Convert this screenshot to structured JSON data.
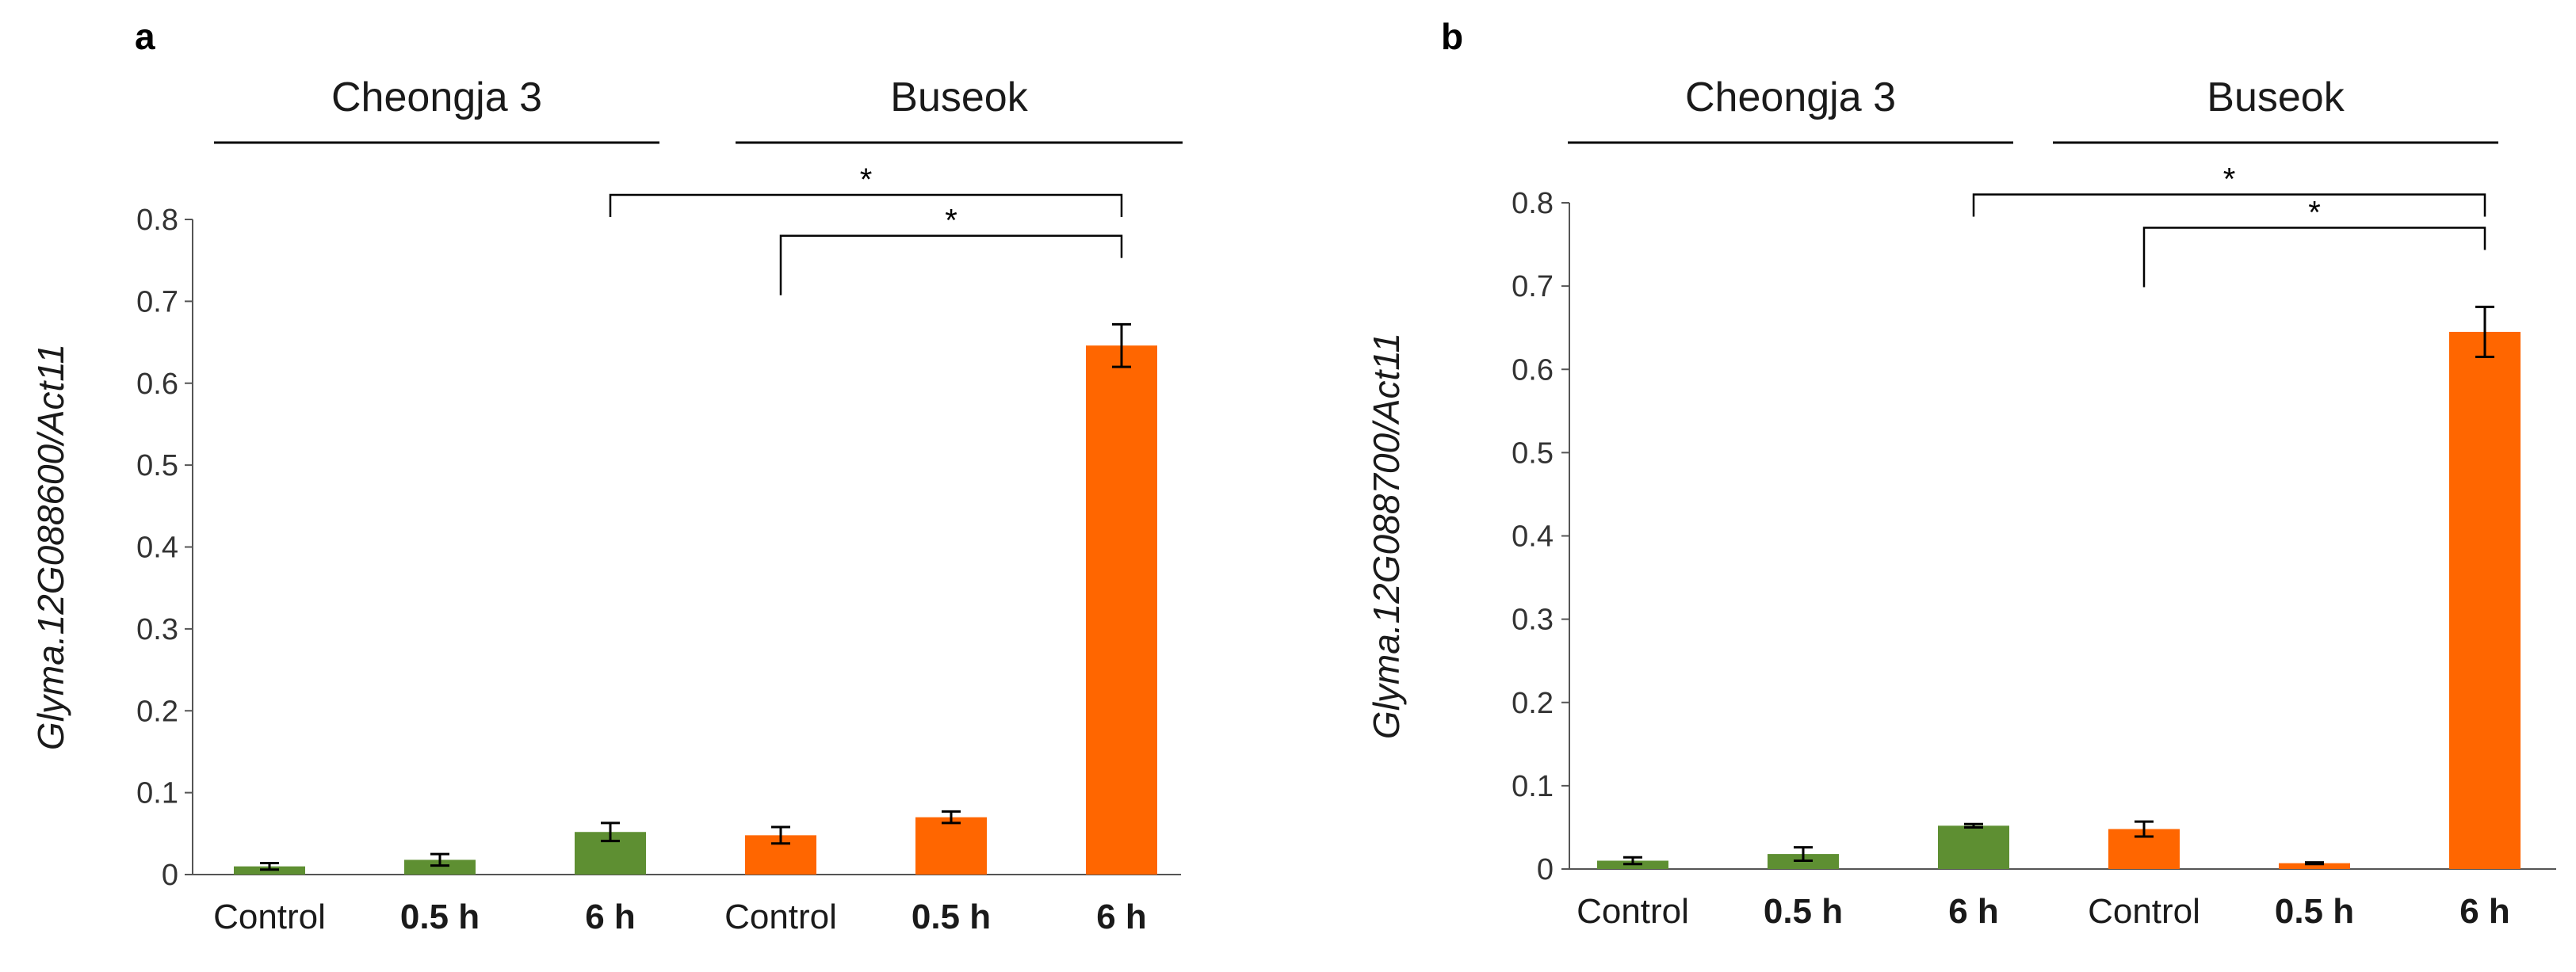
{
  "figure": {
    "group_labels": [
      "Cheongja 3",
      "Buseok"
    ]
  },
  "chart_data": [
    {
      "type": "bar",
      "panel": "a",
      "ylabel_gene": "Glyma.12G088600",
      "ylabel_ref": "/Act11",
      "categories": [
        "Control",
        "0.5 h",
        "6 h",
        "Control",
        "0.5 h",
        "6 h"
      ],
      "category_bold": [
        false,
        true,
        true,
        false,
        true,
        true
      ],
      "groups": [
        {
          "name": "Cheongja 3",
          "indices": [
            0,
            1,
            2
          ],
          "color": "#5e8f32"
        },
        {
          "name": "Buseok",
          "indices": [
            3,
            4,
            5
          ],
          "color": "#ff6600"
        }
      ],
      "values": [
        0.01,
        0.018,
        0.052,
        0.048,
        0.07,
        0.646
      ],
      "errors": [
        0.004,
        0.007,
        0.011,
        0.01,
        0.007,
        0.026
      ],
      "ylim": [
        0,
        0.8
      ],
      "yticks": [
        0,
        0.1,
        0.2,
        0.3,
        0.4,
        0.5,
        0.6,
        0.7,
        0.8
      ],
      "ytick_labels": [
        "0",
        "0.1",
        "0.2",
        "0.3",
        "0.4",
        "0.5",
        "0.6",
        "0.7",
        "0.8"
      ],
      "significance": [
        {
          "from": 2,
          "to": 5,
          "y": 0.83,
          "label": "*"
        },
        {
          "from": 3,
          "to": 5,
          "y": 0.78,
          "label": "*"
        }
      ]
    },
    {
      "type": "bar",
      "panel": "b",
      "ylabel_gene": "Glyma.12G088700",
      "ylabel_ref": "/Act11",
      "categories": [
        "Control",
        "0.5 h",
        "6 h",
        "Control",
        "0.5 h",
        "6 h"
      ],
      "category_bold": [
        false,
        true,
        true,
        false,
        true,
        true
      ],
      "groups": [
        {
          "name": "Cheongja 3",
          "indices": [
            0,
            1,
            2
          ],
          "color": "#5e8f32"
        },
        {
          "name": "Buseok",
          "indices": [
            3,
            4,
            5
          ],
          "color": "#ff6600"
        }
      ],
      "values": [
        0.01,
        0.018,
        0.052,
        0.048,
        0.007,
        0.645
      ],
      "errors": [
        0.004,
        0.008,
        0.002,
        0.009,
        0.001,
        0.03
      ],
      "ylim": [
        0,
        0.8
      ],
      "yticks": [
        0,
        0.1,
        0.2,
        0.3,
        0.4,
        0.5,
        0.6,
        0.7,
        0.8
      ],
      "ytick_labels": [
        "0",
        "0.1",
        "0.2",
        "0.3",
        "0.4",
        "0.5",
        "0.6",
        "0.7",
        "0.8"
      ],
      "significance": [
        {
          "from": 2,
          "to": 5,
          "y": 0.81,
          "label": "*"
        },
        {
          "from": 3,
          "to": 5,
          "y": 0.77,
          "label": "*"
        }
      ]
    }
  ]
}
